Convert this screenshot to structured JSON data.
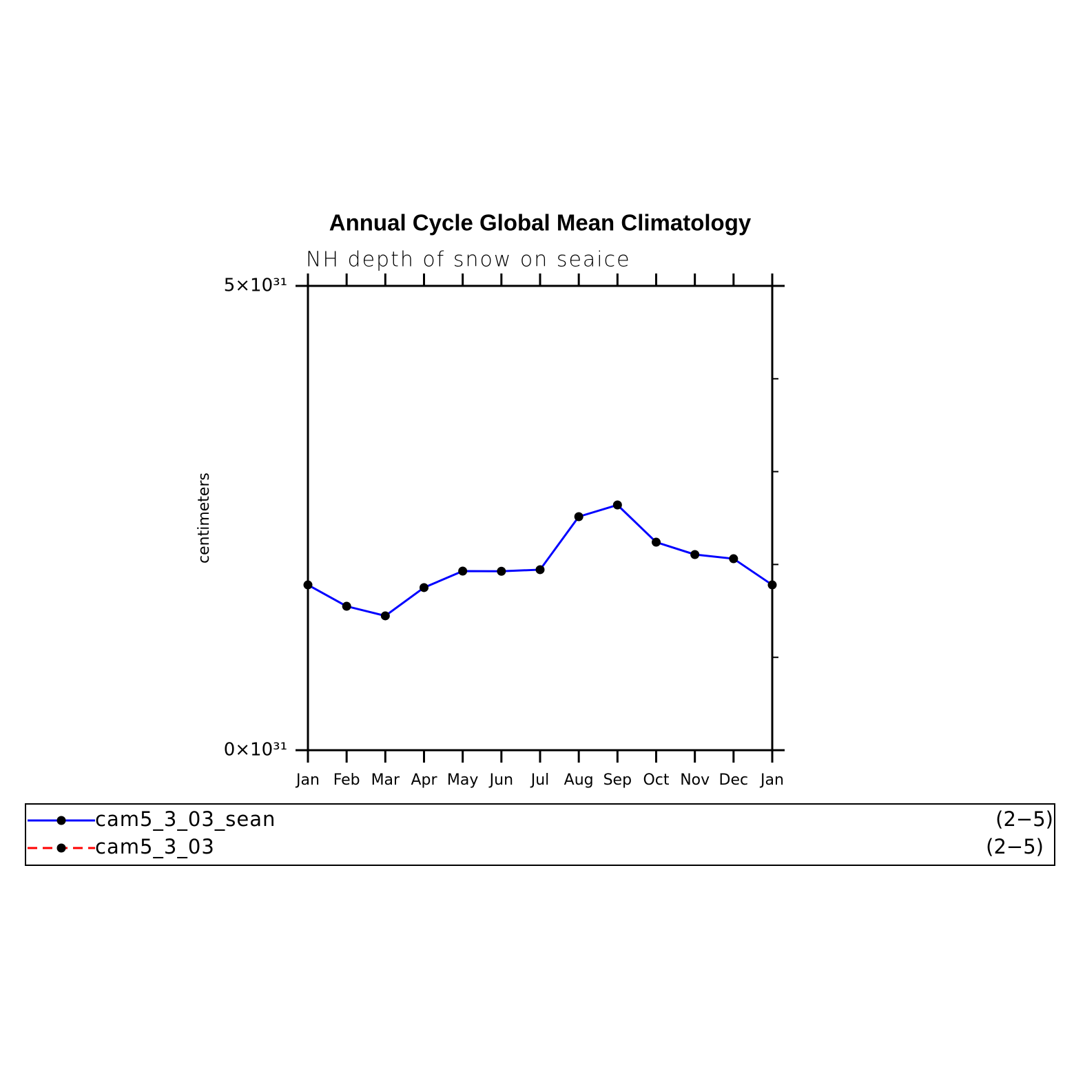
{
  "chart_data": {
    "type": "line",
    "title": "Annual Cycle Global Mean Climatology",
    "subtitle": "NH depth of snow on seaice",
    "y_label": "centimeters",
    "categories": [
      "Jan",
      "Feb",
      "Mar",
      "Apr",
      "May",
      "Jun",
      "Jul",
      "Aug",
      "Sep",
      "Oct",
      "Nov",
      "Dec",
      "Jan"
    ],
    "series": [
      {
        "name": "cam5_3_03_sean",
        "color": "#0000ff",
        "dash": false,
        "range_label": "(2−5)",
        "values": [
          1.78e+31,
          1.55e+31,
          1.447e+31,
          1.751e+31,
          1.929e+31,
          1.927e+31,
          1.944e+31,
          2.515e+31,
          2.641e+31,
          2.24e+31,
          2.107e+31,
          2.062e+31,
          1.78e+31
        ]
      },
      {
        "name": "cam5_3_03",
        "color": "#ff0000",
        "dash": true,
        "range_label": "(2−5)",
        "values": [
          null,
          null,
          null,
          null,
          null,
          null,
          null,
          null,
          null,
          null,
          null,
          null,
          null
        ]
      }
    ],
    "marker_color": "#000000",
    "ylim": [
      0,
      5e+31
    ],
    "yticks": [
      {
        "value": 0,
        "label": "0×10³¹"
      },
      {
        "value": 5e+31,
        "label": "5×10³¹"
      }
    ],
    "minor_yticks": [
      1e+31,
      2e+31,
      3e+31,
      4e+31
    ],
    "grid": false
  }
}
